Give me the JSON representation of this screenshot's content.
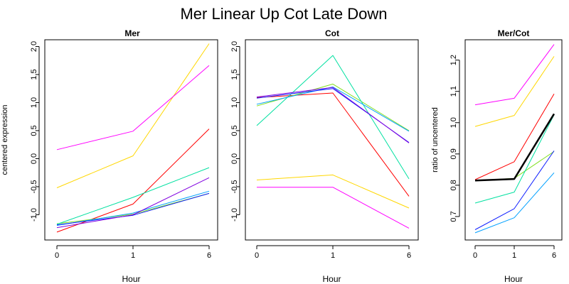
{
  "title": "Mer Linear Up Cot Late Down",
  "colors": {
    "red": "#ff0000",
    "yellow": "#ffd700",
    "green": "#80e020",
    "teal": "#00e0a0",
    "cyan": "#00a0ff",
    "blue": "#1020ff",
    "purple": "#8000e0",
    "magenta": "#ff00ff",
    "black": "#000000"
  },
  "chart_data": [
    {
      "type": "line",
      "title": "Mer",
      "xlabel": "Hour",
      "ylabel": "centered expression",
      "categories": [
        "0",
        "1",
        "6"
      ],
      "ylim": [
        -1.45,
        2.12
      ],
      "yticks": [
        "-1.0",
        "-0.5",
        "0.0",
        "0.5",
        "1.0",
        "1.5",
        "2.0"
      ],
      "series": [
        {
          "color": "red",
          "values": [
            -1.31,
            -0.81,
            0.53
          ]
        },
        {
          "color": "yellow",
          "values": [
            -0.52,
            0.05,
            2.05
          ]
        },
        {
          "color": "green",
          "values": [
            -1.16,
            -0.99,
            -0.62
          ]
        },
        {
          "color": "teal",
          "values": [
            -1.17,
            -0.69,
            -0.16
          ]
        },
        {
          "color": "cyan",
          "values": [
            -1.19,
            -0.97,
            -0.58
          ]
        },
        {
          "color": "blue",
          "values": [
            -1.18,
            -1.01,
            -0.62
          ]
        },
        {
          "color": "purple",
          "values": [
            -1.23,
            -1.0,
            -0.34
          ]
        },
        {
          "color": "magenta",
          "values": [
            0.16,
            0.49,
            1.66
          ]
        }
      ]
    },
    {
      "type": "line",
      "title": "Cot",
      "xlabel": "Hour",
      "ylabel": "",
      "categories": [
        "0",
        "1",
        "6"
      ],
      "ylim": [
        -1.45,
        2.12
      ],
      "yticks": [
        "-1.0",
        "-0.5",
        "0.0",
        "0.5",
        "1.0",
        "1.5",
        "2.0"
      ],
      "series": [
        {
          "color": "red",
          "values": [
            1.09,
            1.17,
            -0.67
          ]
        },
        {
          "color": "yellow",
          "values": [
            -0.38,
            -0.29,
            -0.88
          ]
        },
        {
          "color": "green",
          "values": [
            0.94,
            1.33,
            0.5
          ]
        },
        {
          "color": "teal",
          "values": [
            0.59,
            1.84,
            -0.36
          ]
        },
        {
          "color": "cyan",
          "values": [
            0.97,
            1.28,
            0.49
          ]
        },
        {
          "color": "blue",
          "values": [
            1.08,
            1.25,
            0.29
          ]
        },
        {
          "color": "purple",
          "values": [
            1.1,
            1.27,
            0.28
          ]
        },
        {
          "color": "magenta",
          "values": [
            -0.51,
            -0.51,
            -1.24
          ]
        }
      ]
    },
    {
      "type": "line",
      "title": "Mer/Cot",
      "xlabel": "Hour",
      "ylabel": "ratio of uncentered",
      "categories": [
        "0",
        "1",
        "6"
      ],
      "ylim": [
        0.625,
        1.265
      ],
      "yticks": [
        "0.7",
        "0.8",
        "0.9",
        "1.0",
        "1.1",
        "1.2"
      ],
      "series": [
        {
          "color": "red",
          "values": [
            0.818,
            0.875,
            1.092
          ]
        },
        {
          "color": "yellow",
          "values": [
            0.988,
            1.023,
            1.212
          ]
        },
        {
          "color": "green",
          "values": [
            0.815,
            0.822,
            0.908
          ]
        },
        {
          "color": "teal",
          "values": [
            0.743,
            0.778,
            1.025
          ]
        },
        {
          "color": "cyan",
          "values": [
            0.648,
            0.696,
            0.84
          ]
        },
        {
          "color": "blue",
          "values": [
            0.658,
            0.725,
            0.91
          ]
        },
        {
          "color": "magenta",
          "values": [
            1.057,
            1.078,
            1.25
          ]
        },
        {
          "color": "black",
          "values": [
            0.815,
            0.82,
            1.028
          ]
        }
      ]
    }
  ]
}
